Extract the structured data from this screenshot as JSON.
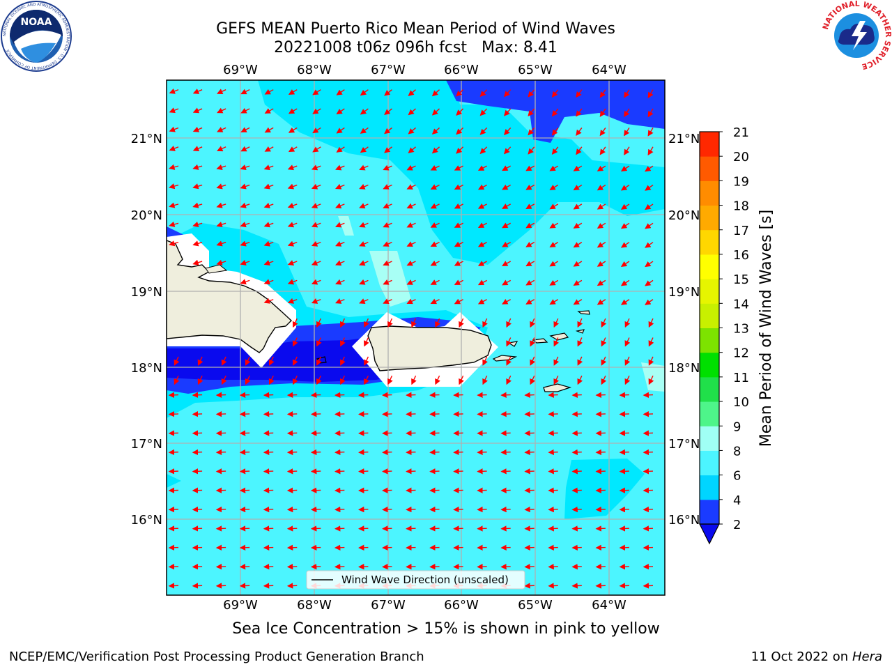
{
  "title": {
    "line1": "GEFS MEAN Puerto Rico Mean Period of Wind Waves",
    "line2_run": "20221008 t06z 096h fcst",
    "line2_max": "Max: 8.41"
  },
  "map": {
    "lon_labels": [
      "69°W",
      "68°W",
      "67°W",
      "66°W",
      "65°W",
      "64°W"
    ],
    "lat_labels": [
      "21°N",
      "20°N",
      "19°N",
      "18°N",
      "17°N",
      "16°N"
    ],
    "legend_label": "Wind Wave Direction (unscaled)",
    "extent": {
      "lon": [
        -70.0,
        -63.25
      ],
      "lat": [
        15.05,
        21.75
      ]
    },
    "wave_direction": "from east-northeast (arrows pointing west/southwest)"
  },
  "colorbar": {
    "label": "Mean Period of Wind Waves [s]",
    "ticks": [
      "2",
      "4",
      "6",
      "8",
      "9",
      "10",
      "11",
      "12",
      "13",
      "14",
      "15",
      "16",
      "17",
      "18",
      "19",
      "20",
      "21"
    ],
    "colors": [
      "#1a3bff",
      "#00d5ff",
      "#4cf5ff",
      "#a0fff5",
      "#4ef58a",
      "#20e04a",
      "#00e000",
      "#7de300",
      "#c8f000",
      "#e6f500",
      "#ffff00",
      "#ffd700",
      "#ffaa00",
      "#ff8c00",
      "#ff5a00",
      "#ff2800"
    ],
    "under_color": "#0a0aee"
  },
  "note": "Sea Ice Concentration > 15% is shown in pink to yellow",
  "footer": {
    "left": "NCEP/EMC/Verification Post Processing Product Generation Branch",
    "right_date": "11 Oct 2022 on",
    "right_host": "Hera"
  },
  "logos": {
    "noaa": "NOAA",
    "noaa_ring": "NATIONAL OCEANIC AND ATMOSPHERIC ADMINISTRATION · U.S. DEPARTMENT OF COMMERCE",
    "nws_ring": "NATIONAL WEATHER SERVICE"
  }
}
